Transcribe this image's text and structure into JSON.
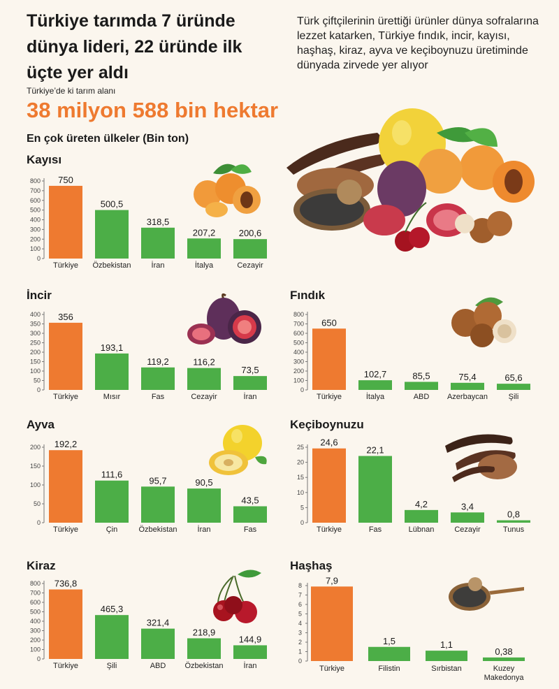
{
  "header": {
    "headline": "Türkiye tarımda 7 üründe dünya lideri, 22 üründe ilk üçte yer aldı",
    "intro": "Türk çiftçilerinin ürettiği ürünler dünya sofralarına lezzet katarken, Türkiye fındık, incir, kayısı, haşhaş, kiraz, ayva ve keçiboynuzu üretiminde dünyada zirvede yer alıyor",
    "area_label": "Türkiye’de ki tarım alanı",
    "area_value": "38 milyon 588 bin hektar",
    "charts_subhead": "En çok üreten ülkeler (Bin ton)"
  },
  "colors": {
    "accent": "#ee7a30",
    "bar_primary": "#ee7a30",
    "bar_secondary": "#4cae47",
    "axis": "#777777",
    "background": "#fbf6ee"
  },
  "chart_data": [
    {
      "id": "kayisi",
      "type": "bar",
      "title": "Kayısı",
      "icon": "apricot-icon",
      "categories": [
        "Türkiye",
        "Özbekistan",
        "İran",
        "İtalya",
        "Cezayir"
      ],
      "values": [
        750,
        500.5,
        318.5,
        207.2,
        200.6
      ],
      "value_labels": [
        "750",
        "500,5",
        "318,5",
        "207,2",
        "200,6"
      ],
      "ylim": [
        0,
        800
      ],
      "yticks": [
        "0",
        "100",
        "200",
        "300",
        "400",
        "500",
        "600",
        "700",
        "800"
      ],
      "grid": false
    },
    {
      "id": "incir",
      "type": "bar",
      "title": "İncir",
      "icon": "fig-icon",
      "categories": [
        "Türkiye",
        "Mısır",
        "Fas",
        "Cezayir",
        "İran"
      ],
      "values": [
        356,
        193.1,
        119.2,
        116.2,
        73.5
      ],
      "value_labels": [
        "356",
        "193,1",
        "119,2",
        "116,2",
        "73,5"
      ],
      "ylim": [
        0,
        400
      ],
      "yticks": [
        "0",
        "50",
        "100",
        "150",
        "200",
        "250",
        "300",
        "350",
        "400"
      ],
      "grid": false
    },
    {
      "id": "findik",
      "type": "bar",
      "title": "Fındık",
      "icon": "hazelnut-icon",
      "categories": [
        "Türkiye",
        "İtalya",
        "ABD",
        "Azerbaycan",
        "Şili"
      ],
      "values": [
        650,
        102.7,
        85.5,
        75.4,
        65.6
      ],
      "value_labels": [
        "650",
        "102,7",
        "85,5",
        "75,4",
        "65,6"
      ],
      "ylim": [
        0,
        800
      ],
      "yticks": [
        "0",
        "100",
        "200",
        "300",
        "400",
        "500",
        "600",
        "700",
        "800"
      ],
      "grid": false
    },
    {
      "id": "ayva",
      "type": "bar",
      "title": "Ayva",
      "icon": "quince-icon",
      "categories": [
        "Türkiye",
        "Çin",
        "Özbekistan",
        "İran",
        "Fas"
      ],
      "values": [
        192.2,
        111.6,
        95.7,
        90.5,
        43.5
      ],
      "value_labels": [
        "192,2",
        "111,6",
        "95,7",
        "90,5",
        "43,5"
      ],
      "ylim": [
        0,
        200
      ],
      "yticks": [
        "0",
        "50",
        "100",
        "150",
        "200"
      ],
      "grid": false
    },
    {
      "id": "keciboynuzu",
      "type": "bar",
      "title": "Keçiboynuzu",
      "icon": "carob-icon",
      "categories": [
        "Türkiye",
        "Fas",
        "Lübnan",
        "Cezayir",
        "Tunus"
      ],
      "values": [
        24.6,
        22.1,
        4.2,
        3.4,
        0.8
      ],
      "value_labels": [
        "24,6",
        "22,1",
        "4,2",
        "3,4",
        "0,8"
      ],
      "ylim": [
        0,
        25
      ],
      "yticks": [
        "0",
        "5",
        "10",
        "15",
        "20",
        "25"
      ],
      "grid": false
    },
    {
      "id": "kiraz",
      "type": "bar",
      "title": "Kiraz",
      "icon": "cherry-icon",
      "categories": [
        "Türkiye",
        "Şili",
        "ABD",
        "Özbekistan",
        "İran"
      ],
      "values": [
        736.8,
        465.3,
        321.4,
        218.9,
        144.9
      ],
      "value_labels": [
        "736,8",
        "465,3",
        "321,4",
        "218,9",
        "144,9"
      ],
      "ylim": [
        0,
        800
      ],
      "yticks": [
        "0",
        "100",
        "200",
        "300",
        "400",
        "500",
        "600",
        "700",
        "800"
      ],
      "grid": false
    },
    {
      "id": "hashas",
      "type": "bar",
      "title": "Haşhaş",
      "icon": "poppy-seed-spoon-icon",
      "categories": [
        "Türkiye",
        "Filistin",
        "Sırbistan",
        "Kuzey Makedonya"
      ],
      "values": [
        7.9,
        1.5,
        1.1,
        0.38
      ],
      "value_labels": [
        "7,9",
        "1,5",
        "1,1",
        "0,38"
      ],
      "ylim": [
        0,
        8
      ],
      "yticks": [
        "0",
        "1",
        "2",
        "3",
        "4",
        "5",
        "6",
        "7",
        "8"
      ],
      "grid": false
    }
  ]
}
